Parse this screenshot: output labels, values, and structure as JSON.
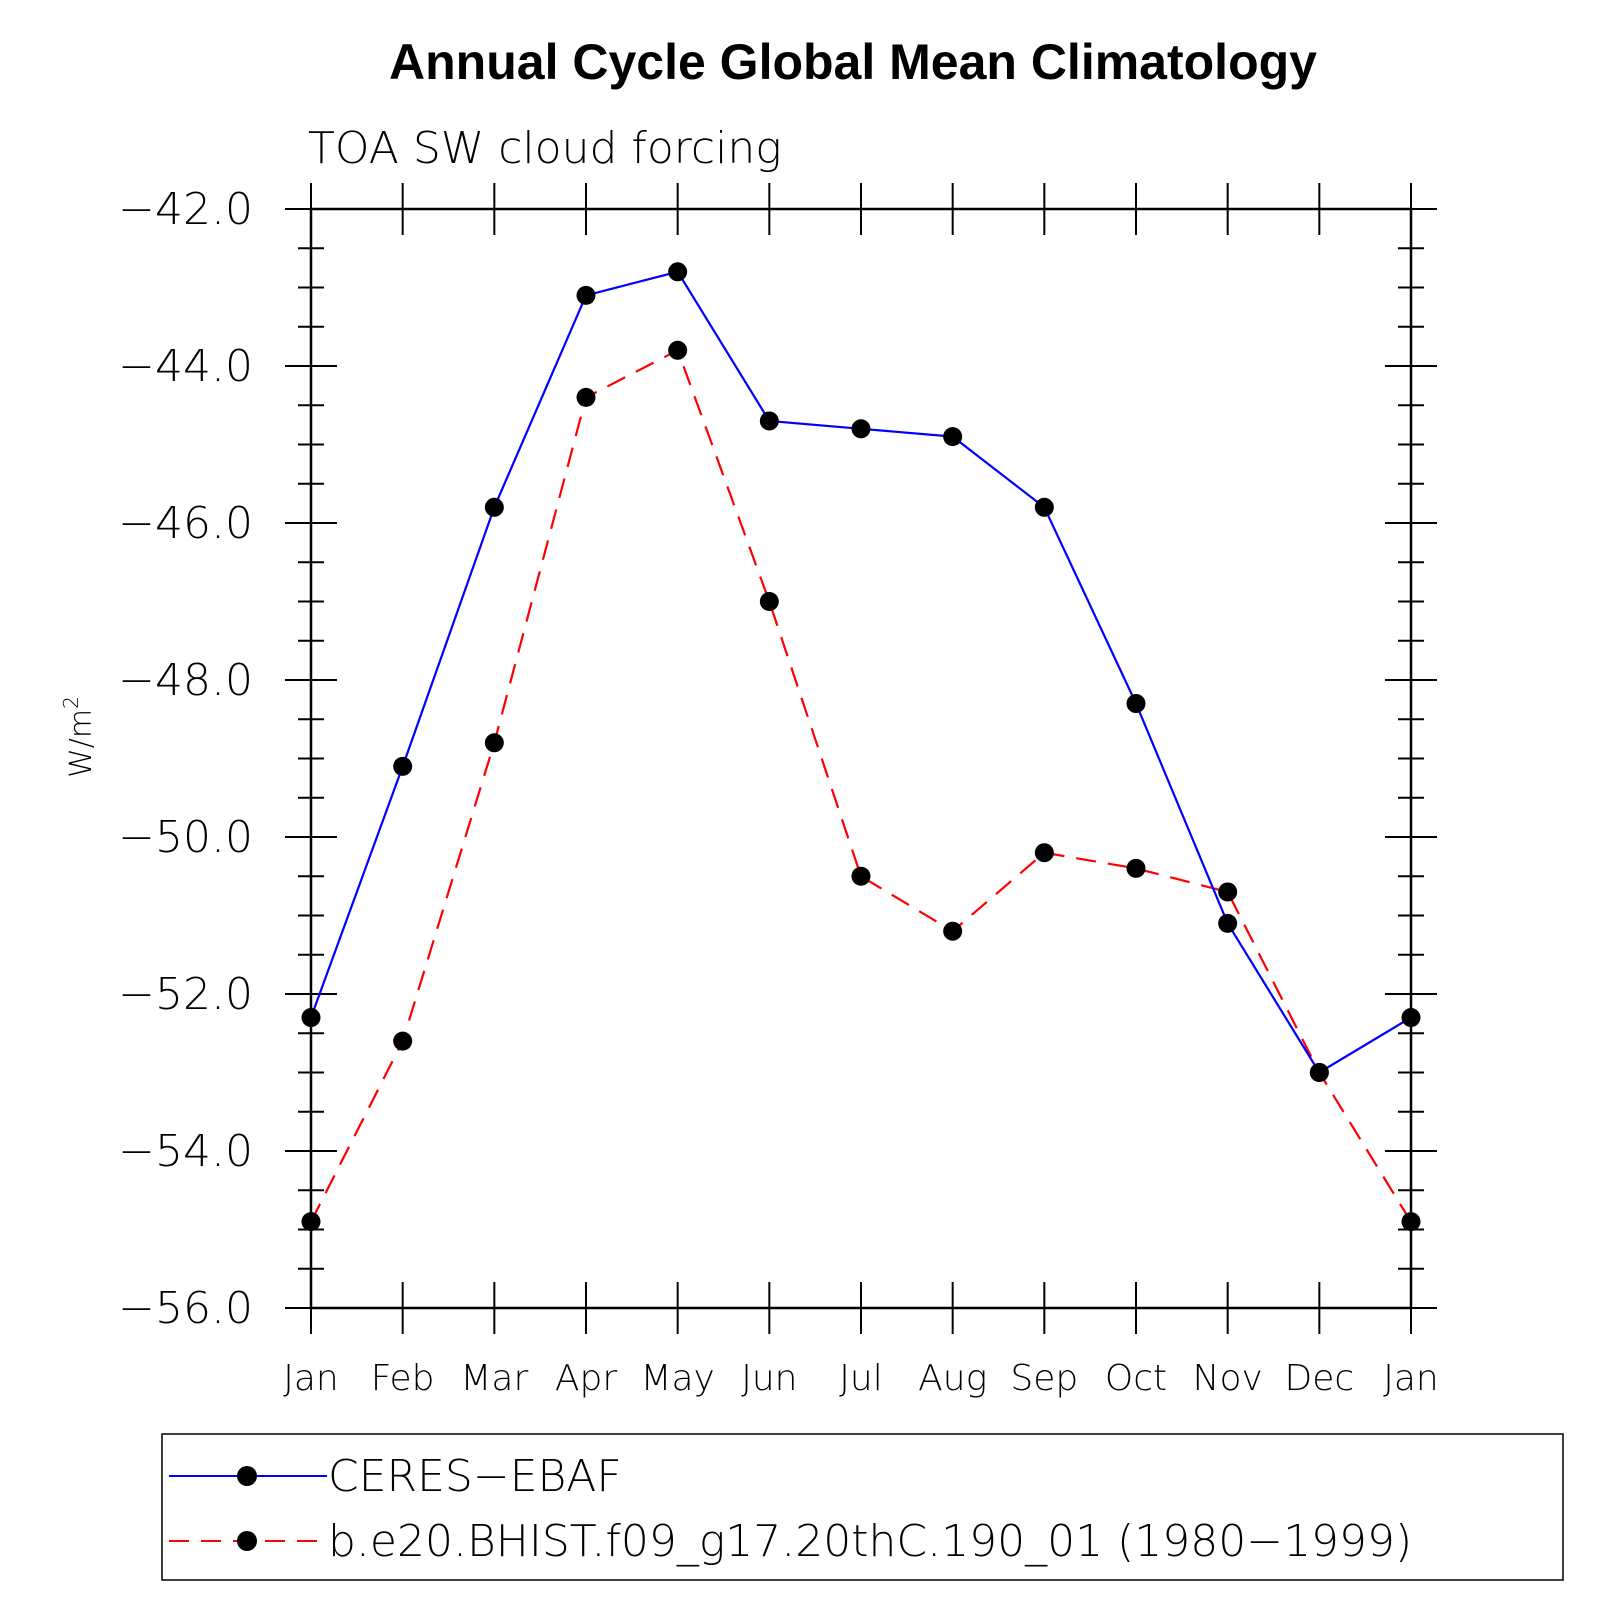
{
  "chart_data": {
    "type": "line",
    "title": "Annual Cycle Global Mean Climatology",
    "subtitle": "TOA SW cloud forcing",
    "ylabel": "W/m",
    "ylabel_superscript": "2",
    "xlabel": "",
    "categories": [
      "Jan",
      "Feb",
      "Mar",
      "Apr",
      "May",
      "Jun",
      "Jul",
      "Aug",
      "Sep",
      "Oct",
      "Nov",
      "Dec",
      "Jan"
    ],
    "ylim": [
      -56.0,
      -42.0
    ],
    "yticks": [
      -42.0,
      -44.0,
      -46.0,
      -48.0,
      -50.0,
      -52.0,
      -54.0,
      -56.0
    ],
    "ytick_labels": [
      "−42.0",
      "−44.0",
      "−46.0",
      "−48.0",
      "−50.0",
      "−52.0",
      "−54.0",
      "−56.0"
    ],
    "grid": false,
    "legend_position": "bottom",
    "series": [
      {
        "name": "CERES−EBAF",
        "color": "#0000ff",
        "dash": "solid",
        "marker": "circle",
        "values": [
          -52.3,
          -49.1,
          -45.8,
          -43.1,
          -42.8,
          -44.7,
          -44.8,
          -44.9,
          -45.8,
          -48.3,
          -51.1,
          -53.0,
          -52.3
        ]
      },
      {
        "name": "b.e20.BHIST.f09_g17.20thC.190_01 (1980−1999)",
        "color": "#ff0000",
        "dash": "dashed",
        "marker": "circle",
        "values": [
          -54.9,
          -52.6,
          -48.8,
          -44.4,
          -43.8,
          -47.0,
          -50.5,
          -51.2,
          -50.2,
          -50.4,
          -50.7,
          -53.0,
          -54.9
        ]
      }
    ]
  }
}
